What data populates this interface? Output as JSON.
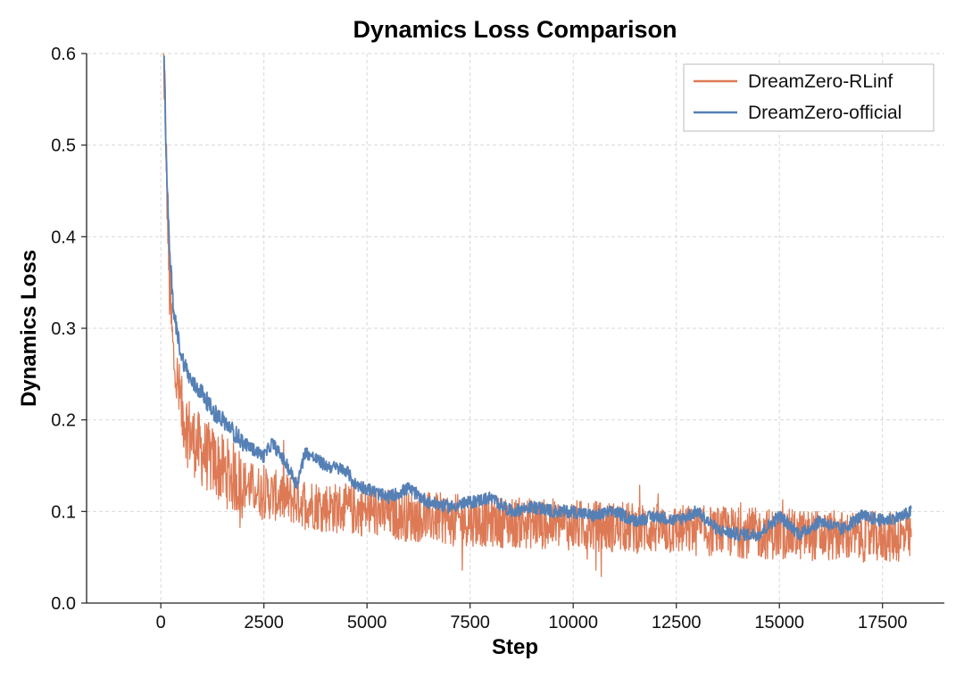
{
  "chart_data": {
    "type": "line",
    "title": "Dynamics Loss Comparison",
    "xlabel": "Step",
    "ylabel": "Dynamics Loss",
    "xlim": [
      -1800,
      19000
    ],
    "ylim": [
      0.0,
      0.6
    ],
    "x_ticks": [
      0,
      2500,
      5000,
      7500,
      10000,
      12500,
      15000,
      17500
    ],
    "y_ticks": [
      0.0,
      0.1,
      0.2,
      0.3,
      0.4,
      0.5,
      0.6
    ],
    "x_tick_labels": [
      "0",
      "2500",
      "5000",
      "7500",
      "10000",
      "12500",
      "15000",
      "17500"
    ],
    "y_tick_labels": [
      "0.0",
      "0.1",
      "0.2",
      "0.3",
      "0.4",
      "0.5",
      "0.6"
    ],
    "grid": true,
    "legend_position": "top-right",
    "series": [
      {
        "name": "DreamZero-RLinf",
        "color": "#DD7A55",
        "noise": 0.028,
        "points": [
          [
            50,
            0.6
          ],
          [
            100,
            0.56
          ],
          [
            150,
            0.45
          ],
          [
            200,
            0.35
          ],
          [
            300,
            0.27
          ],
          [
            500,
            0.21
          ],
          [
            750,
            0.18
          ],
          [
            1000,
            0.165
          ],
          [
            1500,
            0.145
          ],
          [
            2000,
            0.13
          ],
          [
            2500,
            0.12
          ],
          [
            3000,
            0.115
          ],
          [
            4000,
            0.105
          ],
          [
            5000,
            0.1
          ],
          [
            6000,
            0.095
          ],
          [
            7500,
            0.09
          ],
          [
            10000,
            0.085
          ],
          [
            12500,
            0.08
          ],
          [
            15000,
            0.075
          ],
          [
            17500,
            0.072
          ],
          [
            18200,
            0.072
          ]
        ]
      },
      {
        "name": "DreamZero-official",
        "color": "#5580B5",
        "noise": 0.007,
        "points": [
          [
            80,
            0.6
          ],
          [
            120,
            0.5
          ],
          [
            200,
            0.4
          ],
          [
            300,
            0.32
          ],
          [
            500,
            0.27
          ],
          [
            750,
            0.24
          ],
          [
            1000,
            0.23
          ],
          [
            1250,
            0.21
          ],
          [
            1500,
            0.2
          ],
          [
            2000,
            0.175
          ],
          [
            2500,
            0.16
          ],
          [
            2700,
            0.175
          ],
          [
            3000,
            0.155
          ],
          [
            3300,
            0.13
          ],
          [
            3500,
            0.165
          ],
          [
            4000,
            0.15
          ],
          [
            4500,
            0.145
          ],
          [
            4700,
            0.13
          ],
          [
            5000,
            0.125
          ],
          [
            5500,
            0.115
          ],
          [
            6000,
            0.125
          ],
          [
            6500,
            0.11
          ],
          [
            7000,
            0.105
          ],
          [
            7500,
            0.11
          ],
          [
            8000,
            0.115
          ],
          [
            8500,
            0.1
          ],
          [
            9000,
            0.105
          ],
          [
            9500,
            0.1
          ],
          [
            10000,
            0.1
          ],
          [
            10500,
            0.095
          ],
          [
            11000,
            0.1
          ],
          [
            11500,
            0.09
          ],
          [
            12000,
            0.095
          ],
          [
            12500,
            0.09
          ],
          [
            13000,
            0.1
          ],
          [
            13500,
            0.08
          ],
          [
            14000,
            0.075
          ],
          [
            14500,
            0.075
          ],
          [
            15000,
            0.095
          ],
          [
            15500,
            0.075
          ],
          [
            16000,
            0.09
          ],
          [
            16500,
            0.08
          ],
          [
            17000,
            0.095
          ],
          [
            17500,
            0.09
          ],
          [
            18000,
            0.095
          ],
          [
            18200,
            0.1
          ]
        ]
      }
    ]
  }
}
